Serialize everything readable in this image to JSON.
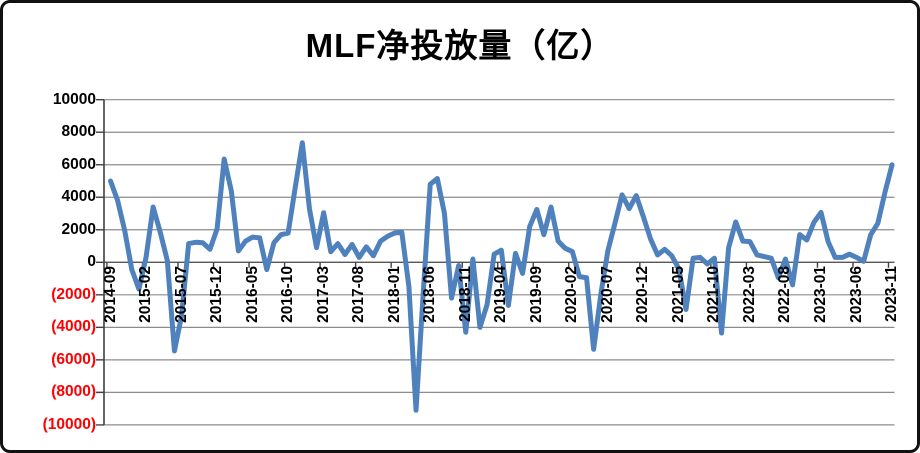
{
  "title": "MLF净投放量（亿）",
  "chart_data": {
    "type": "line",
    "series_name": "MLF净投放量",
    "unit": "亿",
    "title": "MLF净投放量（亿）",
    "xlabel": "",
    "ylabel": "",
    "ylim": [
      -10000,
      10000
    ],
    "y_tick_step": 2000,
    "grid": "on",
    "legend": "none",
    "line_color": "#4F81BD",
    "grid_color": "#8C8C8C",
    "axis_color": "#404040",
    "zero_axis_color": "#595959",
    "negative_label_color": "#FF0000",
    "positive_label_color": "#000000",
    "y_ticks": [
      {
        "value": 10000,
        "label": "10000",
        "color": "#000000"
      },
      {
        "value": 8000,
        "label": "8000",
        "color": "#000000"
      },
      {
        "value": 6000,
        "label": "6000",
        "color": "#000000"
      },
      {
        "value": 4000,
        "label": "4000",
        "color": "#000000"
      },
      {
        "value": 2000,
        "label": "2000",
        "color": "#000000"
      },
      {
        "value": 0,
        "label": "0",
        "color": "#000000"
      },
      {
        "value": -2000,
        "label": "(2000)",
        "color": "#FF0000"
      },
      {
        "value": -4000,
        "label": "(4000)",
        "color": "#FF0000"
      },
      {
        "value": -6000,
        "label": "(6000)",
        "color": "#FF0000"
      },
      {
        "value": -8000,
        "label": "(8000)",
        "color": "#FF0000"
      },
      {
        "value": -10000,
        "label": "(10000)",
        "color": "#FF0000"
      }
    ],
    "x_label_every": 5,
    "x_tick_labels": [
      "2014-09",
      "2015-02",
      "2015-07",
      "2015-12",
      "2016-05",
      "2016-10",
      "2017-03",
      "2017-08",
      "2018-01",
      "2018-06",
      "2018-11",
      "2019-04",
      "2019-09",
      "2020-02",
      "2020-07",
      "2020-12",
      "2021-05",
      "2021-10",
      "2022-03",
      "2022-08",
      "2023-01",
      "2023-06",
      "2023-11"
    ],
    "months": [
      "2014-09",
      "2014-10",
      "2014-11",
      "2014-12",
      "2015-01",
      "2015-02",
      "2015-03",
      "2015-04",
      "2015-05",
      "2015-06",
      "2015-07",
      "2015-08",
      "2015-09",
      "2015-10",
      "2015-11",
      "2015-12",
      "2016-01",
      "2016-02",
      "2016-03",
      "2016-04",
      "2016-05",
      "2016-06",
      "2016-07",
      "2016-08",
      "2016-09",
      "2016-10",
      "2016-11",
      "2016-12",
      "2017-01",
      "2017-02",
      "2017-03",
      "2017-04",
      "2017-05",
      "2017-06",
      "2017-07",
      "2017-08",
      "2017-09",
      "2017-10",
      "2017-11",
      "2017-12",
      "2018-01",
      "2018-02",
      "2018-03",
      "2018-04",
      "2018-05",
      "2018-06",
      "2018-07",
      "2018-08",
      "2018-09",
      "2018-10",
      "2018-11",
      "2018-12",
      "2019-01",
      "2019-02",
      "2019-03",
      "2019-04",
      "2019-05",
      "2019-06",
      "2019-07",
      "2019-08",
      "2019-09",
      "2019-10",
      "2019-11",
      "2019-12",
      "2020-01",
      "2020-02",
      "2020-03",
      "2020-04",
      "2020-05",
      "2020-06",
      "2020-07",
      "2020-08",
      "2020-09",
      "2020-10",
      "2020-11",
      "2020-12",
      "2021-01",
      "2021-02",
      "2021-03",
      "2021-04",
      "2021-05",
      "2021-06",
      "2021-07",
      "2021-08",
      "2021-09",
      "2021-10",
      "2021-11",
      "2021-12",
      "2022-01",
      "2022-02",
      "2022-03",
      "2022-04",
      "2022-05",
      "2022-06",
      "2022-07",
      "2022-08",
      "2022-09",
      "2022-10",
      "2022-11",
      "2022-12",
      "2023-01",
      "2023-02",
      "2023-03",
      "2023-04",
      "2023-05",
      "2023-06",
      "2023-07",
      "2023-08",
      "2023-09",
      "2023-10",
      "2023-11"
    ],
    "values": [
      5000,
      3800,
      1950,
      -450,
      -1650,
      300,
      3400,
      1850,
      100,
      -5450,
      -3300,
      1150,
      1230,
      1200,
      800,
      2050,
      6350,
      4400,
      700,
      1300,
      1550,
      1500,
      -450,
      1200,
      1700,
      1800,
      4600,
      7350,
      3300,
      900,
      3050,
      650,
      1150,
      480,
      1100,
      300,
      950,
      400,
      1300,
      1600,
      1800,
      1850,
      -1500,
      -9100,
      -2000,
      4800,
      5150,
      3000,
      -2200,
      -200,
      -4300,
      200,
      -4000,
      -2600,
      500,
      750,
      -2650,
      550,
      -680,
      2200,
      3250,
      1700,
      3400,
      1300,
      860,
      660,
      -880,
      -950,
      -5350,
      -2000,
      700,
      2400,
      4150,
      3300,
      4100,
      2800,
      1450,
      450,
      800,
      400,
      -400,
      -2900,
      250,
      300,
      -100,
      250,
      -4350,
      900,
      2480,
      1300,
      1270,
      450,
      350,
      250,
      -950,
      200,
      -1390,
      1700,
      1370,
      2450,
      3070,
      1270,
      300,
      300,
      500,
      300,
      60,
      1700,
      2400,
      4300,
      6000
    ]
  }
}
